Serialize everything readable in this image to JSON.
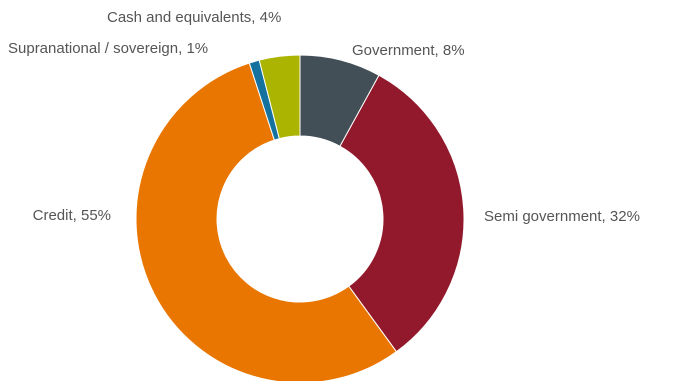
{
  "chart_data": {
    "type": "pie",
    "variant": "donut",
    "slices": [
      {
        "label": "Government, 8%",
        "name": "Government",
        "value": 8,
        "color": "#434f57"
      },
      {
        "label": "Semi government, 32%",
        "name": "Semi government",
        "value": 32,
        "color": "#92192b"
      },
      {
        "label": "Credit, 55%",
        "name": "Credit",
        "value": 55,
        "color": "#e97600"
      },
      {
        "label": "Supranational / sovereign, 1%",
        "name": "Supranational / sovereign",
        "value": 1,
        "color": "#15729e"
      },
      {
        "label": "Cash and equivalents, 4%",
        "name": "Cash and equivalents",
        "value": 4,
        "color": "#abb400"
      }
    ],
    "start_angle": "12 o'clock, clockwise",
    "legend": "none",
    "title": ""
  }
}
